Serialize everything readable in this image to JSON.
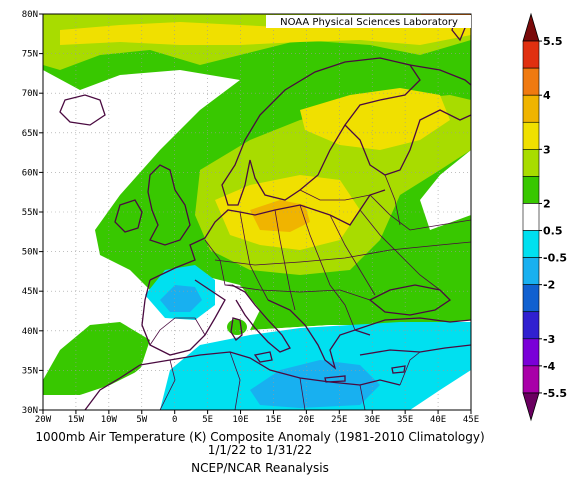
{
  "credit": "NOAA Physical Sciences Laboratory",
  "title_line1": "1000mb Air Temperature (K) Composite Anomaly (1981-2010 Climatology)",
  "title_line2": "1/1/22 to 1/31/22",
  "title_line3": "NCEP/NCAR Reanalysis",
  "lat_labels": [
    "80N",
    "75N",
    "70N",
    "65N",
    "60N",
    "55N",
    "50N",
    "45N",
    "40N",
    "35N",
    "30N"
  ],
  "lon_labels": [
    "20W",
    "15W",
    "10W",
    "5W",
    "0",
    "5E",
    "10E",
    "15E",
    "20E",
    "25E",
    "30E",
    "35E",
    "40E",
    "45E"
  ],
  "colorbar": {
    "labels": [
      "5.5",
      "4",
      "3",
      "2",
      "0.5",
      "-0.5",
      "-2",
      "-3",
      "-4",
      "-5.5"
    ],
    "colors": [
      "#7a0a0a",
      "#e03010",
      "#f07a10",
      "#f0b400",
      "#f0e000",
      "#a8dc00",
      "#38c800",
      "#ffffff",
      "#00e0f0",
      "#18b0f0",
      "#1060d0",
      "#3020d0",
      "#7a00d8",
      "#a800a8",
      "#6a0060"
    ]
  },
  "colors": {
    "green": "#38c800",
    "lightgreen": "#a8dc00",
    "yellow": "#f0e000",
    "gold": "#f0b400",
    "orange": "#f07a10",
    "cyan": "#00e0f0",
    "blue": "#18b0f0",
    "coast": "#4a0a40"
  }
}
